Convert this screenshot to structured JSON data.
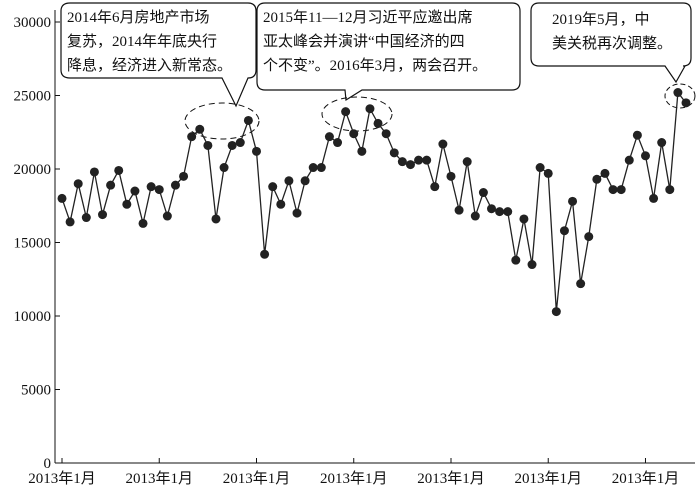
{
  "chart_data": {
    "type": "line",
    "categories": [
      "2013年1月",
      null,
      null,
      null,
      null,
      null,
      null,
      null,
      null,
      null,
      null,
      null,
      "2013年1月",
      null,
      null,
      null,
      null,
      null,
      null,
      null,
      null,
      null,
      null,
      null,
      "2013年1月",
      null,
      null,
      null,
      null,
      null,
      null,
      null,
      null,
      null,
      null,
      null,
      "2013年1月",
      null,
      null,
      null,
      null,
      null,
      null,
      null,
      null,
      null,
      null,
      null,
      "2013年1月",
      null,
      null,
      null,
      null,
      null,
      null,
      null,
      null,
      null,
      null,
      null,
      "2013年1月",
      null,
      null,
      null,
      null,
      null,
      null,
      null,
      null,
      null,
      null,
      null,
      "2013年1月",
      null,
      null,
      null,
      null,
      null
    ],
    "values": [
      18000,
      16400,
      19000,
      16700,
      19800,
      16900,
      18900,
      19900,
      17600,
      18500,
      16300,
      18800,
      18600,
      16800,
      18900,
      19500,
      22200,
      22700,
      21600,
      16600,
      20100,
      21600,
      21800,
      23300,
      21200,
      14200,
      18800,
      17600,
      19200,
      17000,
      19200,
      20100,
      20100,
      22200,
      21800,
      23900,
      22400,
      21200,
      24100,
      23100,
      22400,
      21100,
      20500,
      20300,
      20600,
      20600,
      18800,
      21700,
      19500,
      17200,
      20500,
      16800,
      18400,
      17300,
      17100,
      17100,
      13800,
      16600,
      13500,
      20100,
      19700,
      10300,
      15800,
      17800,
      12200,
      15400,
      19300,
      19700,
      18600,
      18600,
      20600,
      22300,
      20900,
      18000,
      21800,
      18600,
      25200,
      24500
    ],
    "color": "#222222",
    "ylim": [
      0,
      30000
    ],
    "yticks": [
      0,
      5000,
      10000,
      15000,
      20000,
      25000,
      30000
    ],
    "annotations": [
      {
        "lines": [
          "2014年6月房地产市场",
          "复苏，2014年年底央行",
          "降息，经济进入新常态。"
        ]
      },
      {
        "lines": [
          "2015年11—12月习近平应邀出席",
          "亚太峰会并演讲“中国经济的四",
          "个不变”。2016年3月，两会召开。"
        ]
      },
      {
        "lines": [
          "2019年5月，中",
          "美关税再次调整。"
        ]
      }
    ]
  }
}
